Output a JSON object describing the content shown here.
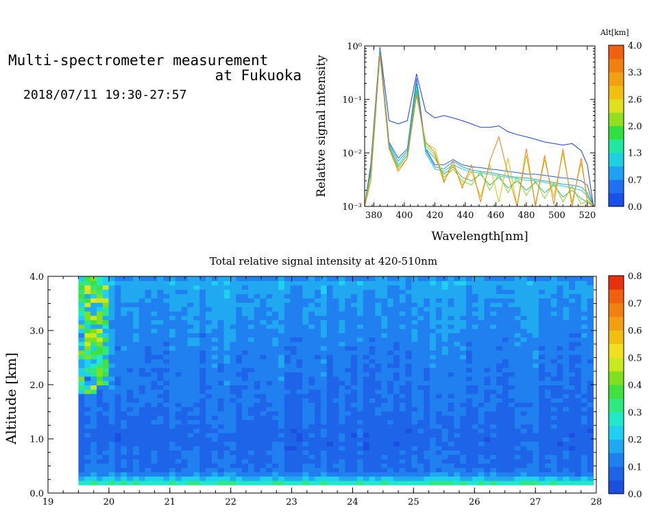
{
  "header": {
    "title_line1": "Multi-spectrometer measurement",
    "title_line2": "at Fukuoka",
    "subtitle": "2018/07/11 19:30-27:57"
  },
  "chart_data": [
    {
      "type": "line",
      "title": "",
      "xlabel": "Wavelength[nm]",
      "ylabel": "Relative signal intensity",
      "xlim": [
        374,
        525
      ],
      "ylim": [
        0.001,
        1
      ],
      "yscale": "log",
      "x_ticks": [
        380,
        400,
        420,
        440,
        460,
        480,
        500,
        520
      ],
      "y_tick_labels": [
        "10⁻³",
        "10⁻²",
        "10⁻¹",
        "10⁰"
      ],
      "colorbar": {
        "label": "Alt[km]",
        "ticks": [
          "0.0",
          "0.7",
          "1.3",
          "2.0",
          "2.6",
          "3.3",
          "4.0"
        ],
        "colors": [
          "#1a50e8",
          "#2070f0",
          "#20a0f0",
          "#20d0e0",
          "#20e8a0",
          "#30e040",
          "#90e020",
          "#e0e020",
          "#f0c010",
          "#f0a010",
          "#f08010",
          "#f06010"
        ]
      },
      "x": [
        374,
        378,
        384,
        390,
        396,
        402,
        408,
        414,
        420,
        426,
        432,
        438,
        444,
        450,
        456,
        462,
        468,
        474,
        480,
        486,
        492,
        498,
        504,
        510,
        516,
        520,
        524
      ],
      "series": [
        {
          "altitude": 0.0,
          "color": "#1a40d0",
          "values": [
            0.001,
            0.006,
            0.95,
            0.04,
            0.035,
            0.04,
            0.3,
            0.06,
            0.045,
            0.05,
            0.045,
            0.04,
            0.035,
            0.03,
            0.03,
            0.032,
            0.025,
            0.022,
            0.02,
            0.018,
            0.016,
            0.015,
            0.014,
            0.015,
            0.011,
            0.006,
            0.001
          ]
        },
        {
          "altitude": 0.4,
          "color": "#2060e0",
          "values": [
            0.001,
            0.005,
            0.9,
            0.016,
            0.008,
            0.012,
            0.25,
            0.012,
            0.006,
            0.006,
            0.0075,
            0.006,
            0.0055,
            0.0053,
            0.005,
            0.0048,
            0.0045,
            0.0043,
            0.004,
            0.004,
            0.0038,
            0.0036,
            0.0034,
            0.0033,
            0.003,
            0.0025,
            0.001
          ]
        },
        {
          "altitude": 0.9,
          "color": "#20a0e8",
          "values": [
            0.001,
            0.005,
            0.85,
            0.015,
            0.007,
            0.011,
            0.2,
            0.011,
            0.0055,
            0.005,
            0.007,
            0.0055,
            0.0048,
            0.0045,
            0.0043,
            0.004,
            0.0037,
            0.0035,
            0.0034,
            0.0032,
            0.003,
            0.0028,
            0.0026,
            0.0025,
            0.0023,
            0.0018,
            0.001
          ]
        },
        {
          "altitude": 1.4,
          "color": "#20d0d0",
          "values": [
            0.001,
            0.004,
            0.8,
            0.014,
            0.006,
            0.01,
            0.18,
            0.01,
            0.005,
            0.0045,
            0.006,
            0.005,
            0.0044,
            0.0042,
            0.004,
            0.0037,
            0.0035,
            0.0033,
            0.0031,
            0.003,
            0.0028,
            0.0026,
            0.0024,
            0.0022,
            0.002,
            0.0016,
            0.001
          ]
        },
        {
          "altitude": 2.0,
          "color": "#30c070",
          "values": [
            0.001,
            0.004,
            0.75,
            0.013,
            0.0055,
            0.009,
            0.15,
            0.012,
            0.008,
            0.004,
            0.0055,
            0.0035,
            0.003,
            0.004,
            0.0025,
            0.0035,
            0.0022,
            0.003,
            0.002,
            0.0028,
            0.0018,
            0.0025,
            0.0015,
            0.002,
            0.0014,
            0.0012,
            0.001
          ]
        },
        {
          "altitude": 2.6,
          "color": "#90d020",
          "values": [
            0.001,
            0.004,
            0.7,
            0.012,
            0.005,
            0.008,
            0.13,
            0.014,
            0.009,
            0.0035,
            0.005,
            0.003,
            0.0025,
            0.0045,
            0.002,
            0.004,
            0.0018,
            0.0035,
            0.0016,
            0.003,
            0.0014,
            0.0028,
            0.0012,
            0.0024,
            0.0011,
            0.0013,
            0.001
          ]
        },
        {
          "altitude": 3.3,
          "color": "#e0c000",
          "values": [
            0.001,
            0.003,
            0.7,
            0.012,
            0.005,
            0.008,
            0.12,
            0.015,
            0.012,
            0.003,
            0.006,
            0.0025,
            0.0045,
            0.0015,
            0.006,
            0.0012,
            0.008,
            0.001,
            0.009,
            0.0011,
            0.0075,
            0.0015,
            0.01,
            0.0012,
            0.0065,
            0.0015,
            0.001
          ]
        },
        {
          "altitude": 4.0,
          "color": "#f08010",
          "values": [
            0.001,
            0.003,
            0.7,
            0.012,
            0.0045,
            0.008,
            0.12,
            0.016,
            0.01,
            0.0028,
            0.007,
            0.0022,
            0.006,
            0.0012,
            0.007,
            0.02,
            0.004,
            0.001,
            0.012,
            0.001,
            0.009,
            0.0011,
            0.012,
            0.001,
            0.008,
            0.0012,
            0.001
          ]
        }
      ]
    },
    {
      "type": "heatmap",
      "title": "Total relative signal intensity at 420-510nm",
      "xlabel": "",
      "ylabel": "Altitude [km]",
      "xlim": [
        19,
        28
      ],
      "ylim": [
        0,
        4
      ],
      "x_ticks": [
        "19",
        "20",
        "21",
        "22",
        "23",
        "24",
        "25",
        "26",
        "27",
        "28"
      ],
      "y_ticks": [
        "0.0",
        "1.0",
        "2.0",
        "3.0",
        "4.0"
      ],
      "data_x_range": [
        19.5,
        27.95
      ],
      "data_y_range": [
        0.15,
        4.0
      ],
      "colorbar": {
        "ticks": [
          "0.0",
          "0.1",
          "0.2",
          "0.3",
          "0.4",
          "0.5",
          "0.6",
          "0.7",
          "0.8"
        ],
        "colors": [
          "#1a4fe0",
          "#1e64e8",
          "#2080f0",
          "#20a8f0",
          "#20d0f0",
          "#20e8c8",
          "#30e880",
          "#40e040",
          "#80e020",
          "#c8e820",
          "#f0e020",
          "#f0c010",
          "#f0a010",
          "#f08010",
          "#f06010",
          "#e83010"
        ]
      },
      "profile_altitudes": [
        0.15,
        0.22,
        0.3,
        0.4,
        0.6,
        0.8,
        1.0,
        1.2,
        1.5,
        1.8,
        2.1,
        2.4,
        2.7,
        3.0,
        3.3,
        3.6,
        3.9,
        4.0
      ],
      "profile_values": [
        0.35,
        0.25,
        0.18,
        0.1,
        0.1,
        0.09,
        0.08,
        0.09,
        0.1,
        0.11,
        0.11,
        0.12,
        0.13,
        0.14,
        0.15,
        0.16,
        0.18,
        0.12
      ]
    }
  ]
}
